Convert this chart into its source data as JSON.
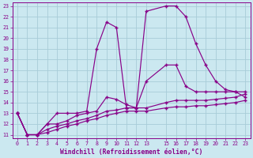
{
  "background_color": "#cbe8f0",
  "grid_color": "#a8ccd8",
  "line_color": "#880088",
  "xlabel": "Windchill (Refroidissement éolien,°C)",
  "xlabel_color": "#880088",
  "xlim": [
    -0.5,
    23.5
  ],
  "ylim": [
    10.7,
    23.3
  ],
  "yticks": [
    11,
    12,
    13,
    14,
    15,
    16,
    17,
    18,
    19,
    20,
    21,
    22,
    23
  ],
  "xticks": [
    0,
    1,
    2,
    3,
    4,
    5,
    6,
    7,
    8,
    9,
    10,
    11,
    12,
    13,
    15,
    16,
    17,
    18,
    19,
    20,
    21,
    22,
    23
  ],
  "lines": [
    {
      "x": [
        0,
        1,
        2,
        3,
        4,
        5,
        6,
        7,
        8,
        9,
        10,
        11,
        12,
        13,
        15,
        16,
        17,
        18,
        19,
        20,
        21,
        22,
        23
      ],
      "y": [
        13,
        11,
        11,
        12,
        13,
        13,
        13,
        13.2,
        19,
        21.5,
        21,
        13.5,
        13.5,
        22.5,
        23,
        23,
        22,
        19.5,
        17.5,
        16,
        15.2,
        15,
        14.5
      ]
    },
    {
      "x": [
        0,
        1,
        2,
        3,
        4,
        5,
        6,
        7,
        8,
        9,
        10,
        11,
        12,
        13,
        15,
        16,
        17,
        18,
        19,
        20,
        21,
        22,
        23
      ],
      "y": [
        13,
        11,
        11,
        12,
        12,
        12.3,
        12.8,
        13,
        13.2,
        14.5,
        14.3,
        13.8,
        13.5,
        16,
        17.5,
        17.5,
        15.5,
        15,
        15,
        15,
        15,
        15,
        15
      ]
    },
    {
      "x": [
        0,
        1,
        2,
        3,
        4,
        5,
        6,
        7,
        8,
        9,
        10,
        11,
        12,
        13,
        15,
        16,
        17,
        18,
        19,
        20,
        21,
        22,
        23
      ],
      "y": [
        13,
        11,
        11,
        11.5,
        11.8,
        12,
        12.3,
        12.5,
        12.8,
        13.2,
        13.3,
        13.5,
        13.5,
        13.5,
        14,
        14.2,
        14.2,
        14.2,
        14.2,
        14.3,
        14.4,
        14.5,
        14.8
      ]
    },
    {
      "x": [
        0,
        1,
        2,
        3,
        4,
        5,
        6,
        7,
        8,
        9,
        10,
        11,
        12,
        13,
        15,
        16,
        17,
        18,
        19,
        20,
        21,
        22,
        23
      ],
      "y": [
        13,
        11,
        11,
        11.2,
        11.5,
        11.8,
        12,
        12.3,
        12.5,
        12.8,
        13,
        13.2,
        13.2,
        13.2,
        13.5,
        13.6,
        13.6,
        13.7,
        13.7,
        13.8,
        13.9,
        14,
        14.2
      ]
    }
  ]
}
